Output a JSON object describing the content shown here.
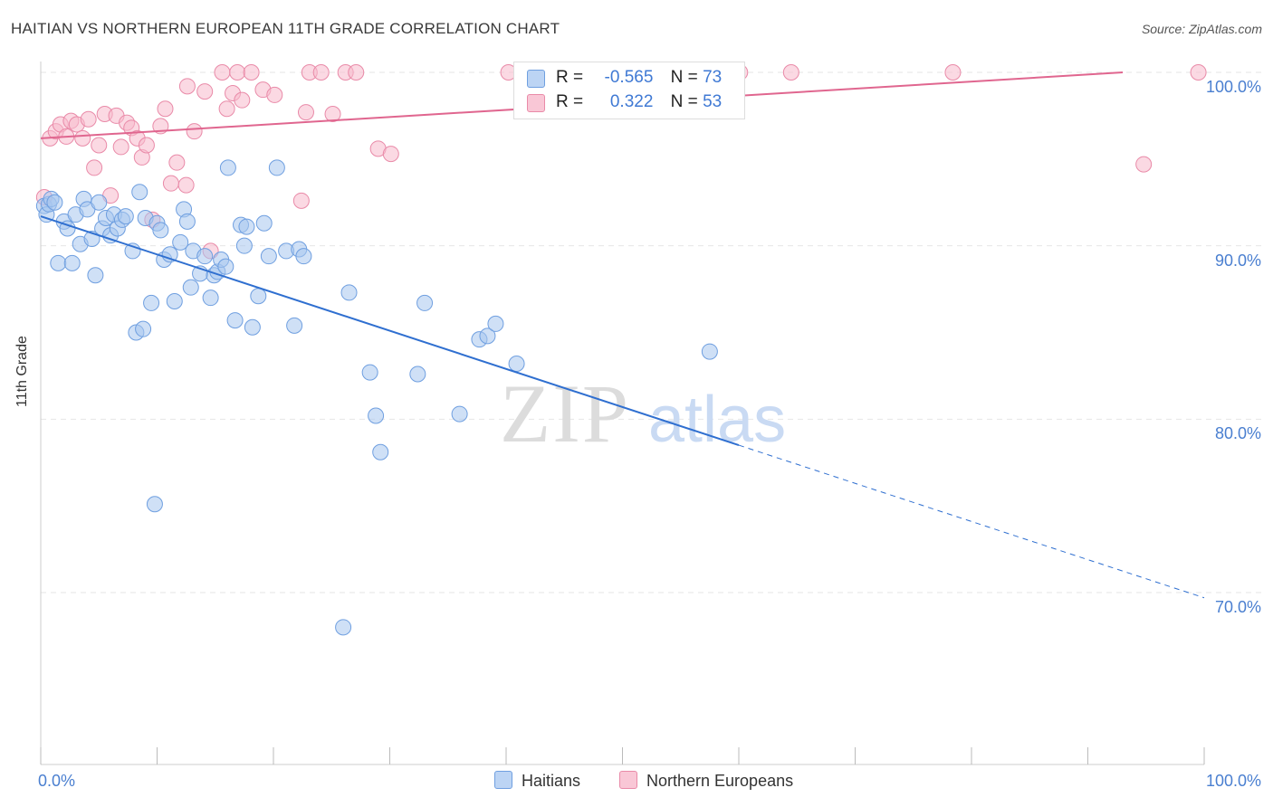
{
  "title": "HAITIAN VS NORTHERN EUROPEAN 11TH GRADE CORRELATION CHART",
  "source": "Source: ZipAtlas.com",
  "watermark": "ZIPatlas",
  "colors": {
    "haitian_fill": "#a8c6ef",
    "haitian_stroke": "#6f9fe0",
    "haitian_line": "#2f6fd0",
    "northern_fill": "#f7b9cc",
    "northern_stroke": "#e98aa8",
    "northern_line": "#e0668f",
    "tick_label": "#4a7fd0",
    "grid": "#e6e6e6"
  },
  "legend": {
    "rows": [
      {
        "r_label": "R =",
        "r_value": "-0.565",
        "n_label": "N =",
        "n_value": "73"
      },
      {
        "r_label": "R =",
        "r_value": "0.322",
        "n_label": "N =",
        "n_value": "53"
      }
    ]
  },
  "chart_data": {
    "type": "scatter",
    "title": "HAITIAN VS NORTHERN EUROPEAN 11TH GRADE CORRELATION CHART",
    "xlabel": "",
    "ylabel": "11th Grade",
    "xlim": [
      0,
      100
    ],
    "ylim": [
      61,
      102
    ],
    "x_tick_labels": [
      "0.0%",
      "100.0%"
    ],
    "y_ticks": [
      70,
      80,
      90,
      100
    ],
    "y_tick_labels": [
      "70.0%",
      "80.0%",
      "90.0%",
      "100.0%"
    ],
    "grid": true,
    "legend_position": "bottom",
    "series": [
      {
        "name": "Haitians",
        "R": -0.565,
        "N": 73,
        "trend": {
          "x0": 0,
          "y0": 91.7,
          "x1_solid": 60,
          "y1_solid": 78.5,
          "x1_dashed": 100,
          "y1_dashed": 69.7
        },
        "points": [
          [
            0.3,
            92.3
          ],
          [
            0.5,
            91.8
          ],
          [
            0.7,
            92.4
          ],
          [
            0.9,
            92.7
          ],
          [
            1.2,
            92.5
          ],
          [
            1.5,
            89.0
          ],
          [
            2.0,
            91.4
          ],
          [
            2.3,
            91.0
          ],
          [
            2.7,
            89.0
          ],
          [
            3.0,
            91.8
          ],
          [
            3.4,
            90.1
          ],
          [
            3.7,
            92.7
          ],
          [
            4.0,
            92.1
          ],
          [
            4.4,
            90.4
          ],
          [
            4.7,
            88.3
          ],
          [
            5.0,
            92.5
          ],
          [
            5.3,
            91.0
          ],
          [
            5.6,
            91.6
          ],
          [
            6.0,
            90.6
          ],
          [
            6.3,
            91.8
          ],
          [
            6.6,
            91.0
          ],
          [
            7.0,
            91.5
          ],
          [
            7.3,
            91.7
          ],
          [
            7.9,
            89.7
          ],
          [
            8.5,
            93.1
          ],
          [
            8.2,
            85.0
          ],
          [
            9.0,
            91.6
          ],
          [
            8.8,
            85.2
          ],
          [
            9.5,
            86.7
          ],
          [
            10.0,
            91.3
          ],
          [
            10.3,
            90.9
          ],
          [
            10.6,
            89.2
          ],
          [
            11.1,
            89.5
          ],
          [
            11.5,
            86.8
          ],
          [
            12.0,
            90.2
          ],
          [
            12.3,
            92.1
          ],
          [
            12.6,
            91.4
          ],
          [
            12.9,
            87.6
          ],
          [
            13.1,
            89.7
          ],
          [
            13.7,
            88.4
          ],
          [
            14.1,
            89.4
          ],
          [
            14.6,
            87.0
          ],
          [
            14.9,
            88.3
          ],
          [
            15.2,
            88.5
          ],
          [
            15.5,
            89.2
          ],
          [
            15.9,
            88.8
          ],
          [
            16.1,
            94.5
          ],
          [
            16.7,
            85.7
          ],
          [
            17.2,
            91.2
          ],
          [
            17.5,
            90.0
          ],
          [
            17.7,
            91.1
          ],
          [
            18.2,
            85.3
          ],
          [
            18.7,
            87.1
          ],
          [
            19.2,
            91.3
          ],
          [
            19.6,
            89.4
          ],
          [
            20.3,
            94.5
          ],
          [
            21.1,
            89.7
          ],
          [
            21.8,
            85.4
          ],
          [
            22.2,
            89.8
          ],
          [
            22.6,
            89.4
          ],
          [
            26.5,
            87.3
          ],
          [
            28.3,
            82.7
          ],
          [
            28.8,
            80.2
          ],
          [
            29.2,
            78.1
          ],
          [
            32.4,
            82.6
          ],
          [
            33.0,
            86.7
          ],
          [
            36.0,
            80.3
          ],
          [
            37.7,
            84.6
          ],
          [
            38.4,
            84.8
          ],
          [
            39.1,
            85.5
          ],
          [
            40.9,
            83.2
          ],
          [
            57.5,
            83.9
          ],
          [
            9.8,
            75.1
          ],
          [
            26.0,
            68.0
          ]
        ]
      },
      {
        "name": "Northern Europeans",
        "R": 0.322,
        "N": 53,
        "trend": {
          "x0": 0,
          "y0": 96.2,
          "x1": 93,
          "y1": 100.0
        },
        "points": [
          [
            0.3,
            92.8
          ],
          [
            0.8,
            96.2
          ],
          [
            1.3,
            96.6
          ],
          [
            1.7,
            97.0
          ],
          [
            2.2,
            96.3
          ],
          [
            2.6,
            97.2
          ],
          [
            3.1,
            97.0
          ],
          [
            3.6,
            96.2
          ],
          [
            4.1,
            97.3
          ],
          [
            4.6,
            94.5
          ],
          [
            5.0,
            95.8
          ],
          [
            5.5,
            97.6
          ],
          [
            6.0,
            92.9
          ],
          [
            6.5,
            97.5
          ],
          [
            6.9,
            95.7
          ],
          [
            7.4,
            97.1
          ],
          [
            7.8,
            96.8
          ],
          [
            8.3,
            96.2
          ],
          [
            8.7,
            95.1
          ],
          [
            9.1,
            95.8
          ],
          [
            9.6,
            91.5
          ],
          [
            10.3,
            96.9
          ],
          [
            10.7,
            97.9
          ],
          [
            11.2,
            93.6
          ],
          [
            11.7,
            94.8
          ],
          [
            12.5,
            93.5
          ],
          [
            12.6,
            99.2
          ],
          [
            13.2,
            96.6
          ],
          [
            14.1,
            98.9
          ],
          [
            14.6,
            89.7
          ],
          [
            15.6,
            100.0
          ],
          [
            16.0,
            97.9
          ],
          [
            16.5,
            98.8
          ],
          [
            16.9,
            100.0
          ],
          [
            17.3,
            98.4
          ],
          [
            18.1,
            100.0
          ],
          [
            19.1,
            99.0
          ],
          [
            20.1,
            98.7
          ],
          [
            22.4,
            92.6
          ],
          [
            22.8,
            97.7
          ],
          [
            23.1,
            100.0
          ],
          [
            24.1,
            100.0
          ],
          [
            25.1,
            97.6
          ],
          [
            26.2,
            100.0
          ],
          [
            27.1,
            100.0
          ],
          [
            29.0,
            95.6
          ],
          [
            30.1,
            95.3
          ],
          [
            40.2,
            100.0
          ],
          [
            60.1,
            100.0
          ],
          [
            64.5,
            100.0
          ],
          [
            78.4,
            100.0
          ],
          [
            94.8,
            94.7
          ],
          [
            99.5,
            100.0
          ]
        ]
      }
    ]
  }
}
